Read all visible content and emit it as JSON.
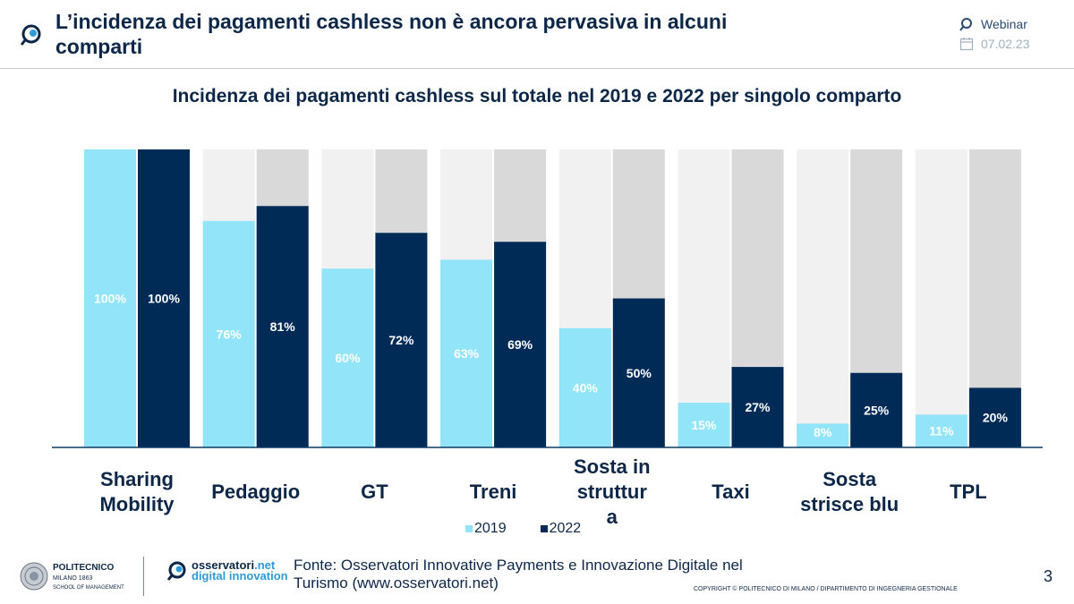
{
  "header": {
    "title": "L’incidenza dei pagamenti cashless non è ancora pervasiva in alcuni comparti",
    "webinar_label": "Webinar",
    "date": "07.02.23"
  },
  "chart_data": {
    "type": "bar",
    "title": "Incidenza dei pagamenti cashless sul totale nel 2019 e 2022 per singolo comparto",
    "categories": [
      "Sharing Mobility",
      "Pedaggio",
      "GT",
      "Treni",
      "Sosta in struttura",
      "Taxi",
      "Sosta strisce blu",
      "TPL"
    ],
    "series": [
      {
        "name": "2019",
        "values": [
          100,
          76,
          60,
          63,
          40,
          15,
          8,
          11
        ],
        "color": "#92e4f8"
      },
      {
        "name": "2022",
        "values": [
          100,
          81,
          72,
          69,
          50,
          27,
          25,
          20
        ],
        "color": "#002b57"
      }
    ],
    "labels_2019": [
      "100%",
      "76%",
      "60%",
      "63%",
      "40%",
      "15%",
      "8%",
      "11%"
    ],
    "labels_2022": [
      "100%",
      "81%",
      "72%",
      "69%",
      "50%",
      "27%",
      "25%",
      "20%"
    ],
    "ylim": [
      0,
      100
    ],
    "unit": "%",
    "stacked_remainder_colors": {
      "2019": "#f1f1f1",
      "2022": "#d9d9d9"
    },
    "legend_position": "bottom-center",
    "grid": false
  },
  "legend": {
    "item_2019": "2019",
    "item_2022": "2022"
  },
  "footer": {
    "poli_line1": "POLITECNICO",
    "poli_line2": "MILANO 1863",
    "poli_line3": "SCHOOL OF MANAGEMENT",
    "oss_name": "osservatori",
    "oss_net": ".net",
    "oss_sub": "digital innovation",
    "source": "Fonte: Osservatori Innovative Payments e Innovazione Digitale nel Turismo (www.osservatori.net)",
    "copyright": "COPYRIGHT © POLITECNICO DI MILANO / DIPARTIMENTO DI INGEGNERIA GESTIONALE",
    "page": "3"
  }
}
